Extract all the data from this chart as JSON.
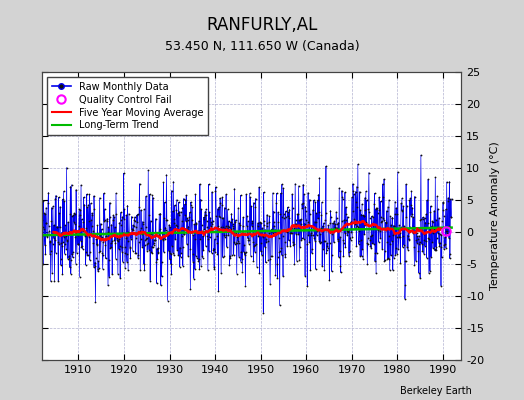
{
  "title": "RANFURLY,AL",
  "subtitle": "53.450 N, 111.650 W (Canada)",
  "ylabel": "Temperature Anomaly (°C)",
  "xlabel_credit": "Berkeley Earth",
  "ylim": [
    -20,
    25
  ],
  "xlim": [
    1902,
    1994
  ],
  "x_ticks": [
    1910,
    1920,
    1930,
    1940,
    1950,
    1960,
    1970,
    1980,
    1990
  ],
  "y_ticks": [
    -20,
    -15,
    -10,
    -5,
    0,
    5,
    10,
    15,
    20,
    25
  ],
  "bg_color": "#d3d3d3",
  "plot_bg_color": "#ffffff",
  "grid_color": "#aaaacc",
  "raw_line_color": "#0000ee",
  "raw_marker_color": "#111111",
  "moving_avg_color": "#ff0000",
  "trend_color": "#00bb00",
  "qc_fail_color": "#ff00ff",
  "legend_items": [
    "Raw Monthly Data",
    "Quality Control Fail",
    "Five Year Moving Average",
    "Long-Term Trend"
  ],
  "seed": 37,
  "n_years": 90,
  "start_year": 1902,
  "noise_std": 3.5,
  "trend_slope": 0.012,
  "trend_intercept": -0.5,
  "moving_avg_window": 60,
  "qc_fail_x": 1990.75,
  "qc_fail_y": 0.15
}
